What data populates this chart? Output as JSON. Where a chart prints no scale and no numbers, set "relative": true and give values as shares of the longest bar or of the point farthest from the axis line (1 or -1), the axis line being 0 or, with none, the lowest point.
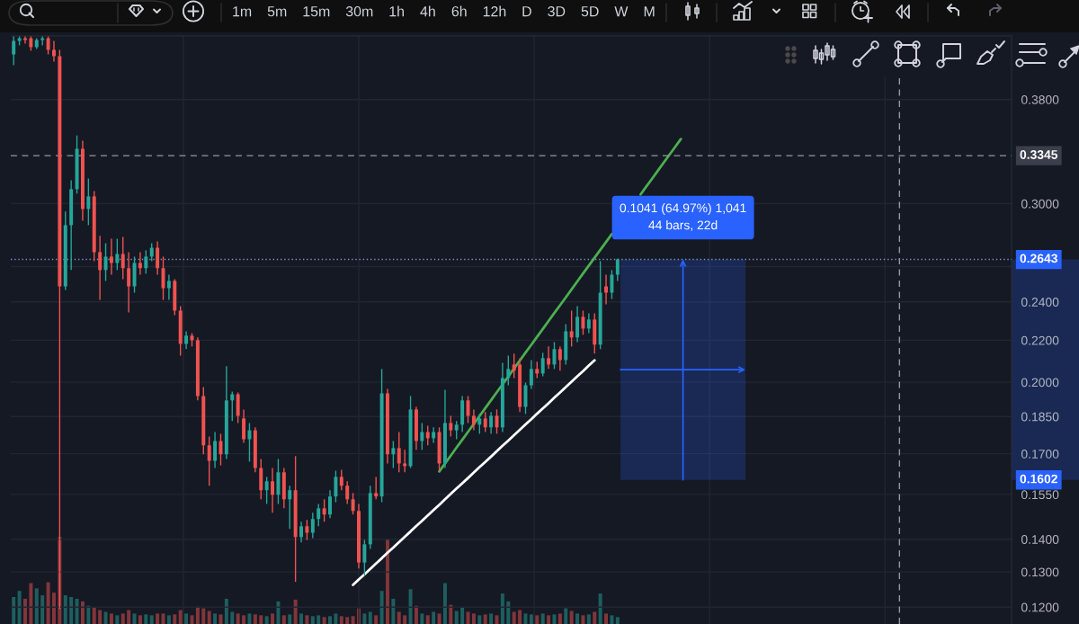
{
  "chart_data": [
    {
      "type": "candlestick",
      "categories": [
        null,
        null,
        null,
        null,
        null,
        null,
        null,
        null,
        null,
        null,
        null,
        null,
        null,
        null,
        null,
        null,
        null,
        null,
        null,
        null,
        null,
        null,
        null,
        null,
        null,
        null,
        null,
        null,
        null,
        null,
        null,
        null,
        null,
        null,
        null,
        null,
        null,
        null,
        null,
        null,
        null,
        null,
        null,
        null,
        null,
        null,
        null,
        null,
        null,
        null,
        null,
        null,
        null,
        null,
        null,
        null,
        null,
        null,
        null,
        null,
        null,
        null,
        null,
        null,
        null,
        null,
        null,
        null,
        null,
        null,
        null,
        null,
        null,
        null,
        null,
        null,
        null,
        null,
        null,
        null,
        null,
        null,
        null,
        null,
        null,
        null,
        null,
        null,
        null,
        null,
        null,
        null,
        null,
        null,
        null,
        null,
        null,
        null,
        null,
        null,
        null,
        null,
        null,
        null,
        null,
        null,
        null,
        null,
        null,
        null,
        null,
        null,
        null,
        null,
        null,
        null,
        null,
        null,
        null,
        null,
        null,
        null,
        null,
        null,
        null,
        null,
        null,
        null,
        null,
        null,
        null,
        null,
        null,
        null,
        null,
        null,
        null,
        null,
        null,
        null,
        null,
        null,
        null,
        null,
        null,
        null,
        null,
        null,
        null,
        null,
        null,
        null,
        null,
        null,
        null,
        null,
        null,
        null,
        null,
        null,
        null,
        null,
        null,
        null,
        null,
        null,
        null,
        null,
        null,
        null,
        null,
        null,
        null,
        null
      ],
      "ohlc": [
        [
          0.421,
          0.4385,
          0.4108,
          0.4341
        ],
        [
          0.4341,
          0.4385,
          0.4297,
          0.4367
        ],
        [
          0.4367,
          0.4385,
          0.4315,
          0.435
        ],
        [
          0.4367,
          0.4385,
          0.4245,
          0.428
        ],
        [
          0.428,
          0.4367,
          0.4262,
          0.435
        ],
        [
          0.435,
          0.4385,
          0.4297,
          0.4367
        ],
        [
          0.4367,
          0.4385,
          0.421,
          0.4254
        ],
        [
          0.4254,
          0.4341,
          0.4142,
          0.4193
        ],
        [
          0.4193,
          0.4254,
          0.1195,
          0.2486
        ],
        [
          0.2486,
          0.2946,
          0.2466,
          0.2857
        ],
        [
          0.2857,
          0.3163,
          0.258,
          0.31
        ],
        [
          0.31,
          0.3503,
          0.3069,
          0.3398
        ],
        [
          0.3398,
          0.3461,
          0.2886,
          0.2964
        ],
        [
          0.2964,
          0.3176,
          0.2857,
          0.305
        ],
        [
          0.305,
          0.3087,
          0.2633,
          0.2687
        ],
        [
          0.2687,
          0.2788,
          0.2411,
          0.258
        ],
        [
          0.258,
          0.2742,
          0.2517,
          0.266
        ],
        [
          0.266,
          0.277,
          0.2553,
          0.2622
        ],
        [
          0.2622,
          0.277,
          0.258,
          0.2676
        ],
        [
          0.2676,
          0.2782,
          0.2527,
          0.2591
        ],
        [
          0.2591,
          0.2687,
          0.2343,
          0.2486
        ],
        [
          0.2486,
          0.266,
          0.2451,
          0.2622
        ],
        [
          0.2622,
          0.2687,
          0.2553,
          0.2591
        ],
        [
          0.2591,
          0.2698,
          0.2559,
          0.266
        ],
        [
          0.266,
          0.2742,
          0.2633,
          0.2714
        ],
        [
          0.2714,
          0.2753,
          0.2553,
          0.2591
        ],
        [
          0.2591,
          0.266,
          0.2411,
          0.2476
        ],
        [
          0.2476,
          0.2553,
          0.2411,
          0.2517
        ],
        [
          0.2517,
          0.2527,
          0.2329,
          0.2353
        ],
        [
          0.2353,
          0.2377,
          0.2125,
          0.2182
        ],
        [
          0.2182,
          0.2245,
          0.2156,
          0.2223
        ],
        [
          0.2223,
          0.2236,
          0.2169,
          0.22
        ],
        [
          0.22,
          0.2214,
          0.1919,
          0.1938
        ],
        [
          0.1938,
          0.1978,
          0.1698,
          0.1733
        ],
        [
          0.1733,
          0.1768,
          0.1581,
          0.1673
        ],
        [
          0.1673,
          0.1786,
          0.1646,
          0.175
        ],
        [
          0.175,
          0.1779,
          0.1656,
          0.1698
        ],
        [
          0.1698,
          0.2074,
          0.168,
          0.1919
        ],
        [
          0.1919,
          0.1958,
          0.1831,
          0.1946
        ],
        [
          0.1946,
          0.1954,
          0.1823,
          0.1853
        ],
        [
          0.1842,
          0.188,
          0.1743,
          0.1757
        ],
        [
          0.1757,
          0.1823,
          0.167,
          0.1793
        ],
        [
          0.1793,
          0.1805,
          0.163,
          0.1646
        ],
        [
          0.1646,
          0.168,
          0.1533,
          0.1565
        ],
        [
          0.1565,
          0.1613,
          0.1517,
          0.1597
        ],
        [
          0.1597,
          0.1646,
          0.1487,
          0.1549
        ],
        [
          0.1549,
          0.168,
          0.1517,
          0.163
        ],
        [
          0.163,
          0.1646,
          0.1502,
          0.1533
        ],
        [
          0.1533,
          0.1581,
          0.1433,
          0.1565
        ],
        [
          0.1565,
          0.1691,
          0.1271,
          0.1407
        ],
        [
          0.1407,
          0.1457,
          0.139,
          0.1442
        ],
        [
          0.1442,
          0.1463,
          0.1398,
          0.1421
        ],
        [
          0.1421,
          0.1487,
          0.1404,
          0.1466
        ],
        [
          0.1466,
          0.1517,
          0.1442,
          0.1502
        ],
        [
          0.1502,
          0.1533,
          0.1457,
          0.1481
        ],
        [
          0.1481,
          0.1565,
          0.1469,
          0.1543
        ],
        [
          0.1543,
          0.1636,
          0.1523,
          0.1613
        ],
        [
          0.1613,
          0.1639,
          0.1565,
          0.1581
        ],
        [
          0.1581,
          0.1597,
          0.1517,
          0.1533
        ],
        [
          0.1533,
          0.1555,
          0.1481,
          0.1493
        ],
        [
          0.1493,
          0.1517,
          0.131,
          0.1328
        ],
        [
          0.1328,
          0.1398,
          0.1289,
          0.1384
        ],
        [
          0.1384,
          0.1581,
          0.137,
          0.1555
        ],
        [
          0.1555,
          0.1613,
          0.1533,
          0.1543
        ],
        [
          0.1543,
          0.2061,
          0.1523,
          0.195
        ],
        [
          0.195,
          0.197,
          0.1663,
          0.1698
        ],
        [
          0.1698,
          0.175,
          0.1646,
          0.1722
        ],
        [
          0.1722,
          0.1786,
          0.163,
          0.1663
        ],
        [
          0.1663,
          0.1715,
          0.163,
          0.1653
        ],
        [
          0.1653,
          0.1938,
          0.1646,
          0.188
        ],
        [
          0.188,
          0.1891,
          0.1715,
          0.175
        ],
        [
          0.175,
          0.1823,
          0.1715,
          0.1786
        ],
        [
          0.1786,
          0.1812,
          0.1733,
          0.1761
        ],
        [
          0.1761,
          0.1805,
          0.1743,
          0.1786
        ],
        [
          0.1786,
          0.1805,
          0.1636,
          0.1663
        ],
        [
          0.1663,
          0.1966,
          0.1646,
          0.1823
        ],
        [
          0.1823,
          0.1853,
          0.1768,
          0.1793
        ],
        [
          0.1793,
          0.1831,
          0.1757,
          0.1816
        ],
        [
          0.1816,
          0.1938,
          0.1786,
          0.1919
        ],
        [
          0.1919,
          0.1938,
          0.1823,
          0.1853
        ],
        [
          0.1853,
          0.188,
          0.1793,
          0.1816
        ],
        [
          0.1816,
          0.1861,
          0.1779,
          0.1842
        ],
        [
          0.1842,
          0.1869,
          0.1786,
          0.1805
        ],
        [
          0.1805,
          0.1869,
          0.1779,
          0.1853
        ],
        [
          0.1853,
          0.188,
          0.1779,
          0.1805
        ],
        [
          0.1805,
          0.209,
          0.1786,
          0.2019
        ],
        [
          0.2019,
          0.2125,
          0.1986,
          0.2061
        ],
        [
          0.2082,
          0.2134,
          0.2019,
          0.2053
        ],
        [
          0.2082,
          0.2112,
          0.1869,
          0.1891
        ],
        [
          0.1891,
          0.1998,
          0.1861,
          0.1986
        ],
        [
          0.1986,
          0.2103,
          0.197,
          0.2061
        ],
        [
          0.2061,
          0.2095,
          0.2019,
          0.204
        ],
        [
          0.204,
          0.2138,
          0.2027,
          0.2112
        ],
        [
          0.2112,
          0.2169,
          0.2061,
          0.2082
        ],
        [
          0.2082,
          0.2191,
          0.2061,
          0.2156
        ],
        [
          0.2156,
          0.2169,
          0.2053,
          0.2103
        ],
        [
          0.2103,
          0.2282,
          0.2082,
          0.2245
        ],
        [
          0.2245,
          0.2353,
          0.2169,
          0.2214
        ],
        [
          0.2214,
          0.2377,
          0.2191,
          0.232
        ],
        [
          0.232,
          0.2353,
          0.2227,
          0.2259
        ],
        [
          0.2259,
          0.2339,
          0.2236,
          0.2306
        ],
        [
          0.2306,
          0.2339,
          0.2134,
          0.2178
        ],
        [
          0.2178,
          0.2633,
          0.2156,
          0.2451
        ],
        [
          0.2486,
          0.2553,
          0.2387,
          0.2451
        ],
        [
          0.2451,
          0.258,
          0.2416,
          0.2553
        ],
        [
          0.2553,
          0.2649,
          0.2517,
          0.2643
        ],
        null,
        null,
        null,
        null,
        null,
        null,
        null,
        null,
        null,
        null,
        null,
        null,
        null,
        null,
        null,
        null,
        null,
        null,
        null,
        null,
        null,
        null,
        null,
        null,
        null,
        null,
        null,
        null,
        null,
        null,
        null,
        null,
        null,
        null,
        null,
        null,
        null,
        null,
        null,
        null,
        null,
        null,
        null,
        null,
        null,
        null,
        null,
        null,
        null,
        null,
        null,
        null,
        null,
        null,
        null,
        null,
        null,
        null,
        null,
        null,
        null,
        null,
        null,
        null,
        null,
        null,
        null,
        null
      ],
      "colors": [
        "#26a69a",
        "#26a69a",
        "#ef5350",
        "#ef5350",
        "#26a69a",
        "#26a69a",
        "#ef5350",
        "#ef5350",
        "#ef5350",
        "#26a69a",
        "#26a69a",
        "#26a69a",
        "#ef5350",
        "#26a69a",
        "#ef5350",
        "#ef5350",
        "#26a69a",
        "#ef5350",
        "#26a69a",
        "#ef5350",
        "#ef5350",
        "#26a69a",
        "#ef5350",
        "#26a69a",
        "#26a69a",
        "#ef5350",
        "#ef5350",
        "#26a69a",
        "#ef5350",
        "#ef5350",
        "#26a69a",
        "#ef5350",
        "#ef5350",
        "#ef5350",
        "#ef5350",
        "#26a69a",
        "#ef5350",
        "#26a69a",
        "#26a69a",
        "#ef5350",
        "#ef5350",
        "#26a69a",
        "#ef5350",
        "#ef5350",
        "#26a69a",
        "#ef5350",
        "#26a69a",
        "#ef5350",
        "#26a69a",
        "#ef5350",
        "#26a69a",
        "#ef5350",
        "#26a69a",
        "#26a69a",
        "#ef5350",
        "#26a69a",
        "#26a69a",
        "#ef5350",
        "#ef5350",
        "#ef5350",
        "#ef5350",
        "#26a69a",
        "#26a69a",
        "#ef5350",
        "#26a69a",
        "#ef5350",
        "#26a69a",
        "#ef5350",
        "#ef5350",
        "#26a69a",
        "#ef5350",
        "#26a69a",
        "#ef5350",
        "#26a69a",
        "#ef5350",
        "#26a69a",
        "#ef5350",
        "#26a69a",
        "#26a69a",
        "#ef5350",
        "#ef5350",
        "#26a69a",
        "#ef5350",
        "#26a69a",
        "#ef5350",
        "#26a69a",
        "#26a69a",
        "#ef5350",
        "#ef5350",
        "#26a69a",
        "#26a69a",
        "#ef5350",
        "#26a69a",
        "#ef5350",
        "#26a69a",
        "#ef5350",
        "#26a69a",
        "#ef5350",
        "#26a69a",
        "#ef5350",
        "#26a69a",
        "#ef5350",
        "#26a69a",
        "#ef5350",
        "#26a69a",
        "#26a69a",
        null,
        null,
        null,
        null,
        null,
        null,
        null,
        null,
        null,
        null,
        null,
        null,
        null,
        null,
        null,
        null,
        null,
        null,
        null,
        null,
        null,
        null,
        null,
        null,
        null,
        null,
        null,
        null,
        null,
        null,
        null,
        null,
        null,
        null,
        null,
        null,
        null,
        null,
        null,
        null,
        null,
        null,
        null,
        null,
        null,
        null,
        null,
        null,
        null,
        null,
        null,
        null,
        null,
        null,
        null,
        null,
        null,
        null,
        null,
        null,
        null,
        null,
        null,
        null,
        null,
        null,
        null,
        null
      ],
      "series": [
        {
          "type": "line",
          "color": "#ffffff",
          "values": [
            null,
            null,
            null,
            null,
            null,
            null,
            null,
            null,
            null,
            null,
            null,
            null,
            null,
            null,
            null,
            null,
            null,
            null,
            null,
            null,
            null,
            null,
            null,
            null,
            null,
            null,
            null,
            null,
            null,
            null,
            null,
            null,
            null,
            null,
            null,
            null,
            null,
            null,
            null,
            null,
            null,
            null,
            null,
            null,
            null,
            null,
            null,
            null,
            null,
            null,
            null,
            null,
            null,
            null,
            null,
            null,
            null,
            null,
            null,
            0.1262,
            0.1278,
            0.1293,
            0.1309,
            0.1325,
            0.1341,
            0.1358,
            0.1374,
            0.1391,
            0.1408,
            0.1425,
            0.1443,
            0.146,
            0.1478,
            0.1496,
            0.1514,
            0.1533,
            0.1552,
            0.1571,
            0.159,
            0.1609,
            0.1629,
            0.1649,
            0.1669,
            0.1689,
            0.171,
            0.1731,
            0.1752,
            0.1773,
            0.1795,
            0.1817,
            0.1839,
            0.1862,
            0.1884,
            0.1907,
            0.1931,
            0.1954,
            0.1978,
            0.2002,
            0.2027,
            0.2051,
            0.2077,
            0.2102,
            null,
            null,
            null,
            null,
            null,
            null,
            null,
            null,
            null,
            null,
            null,
            null,
            null,
            null,
            null,
            null,
            null,
            null,
            null,
            null,
            null,
            null,
            null,
            null,
            null,
            null,
            null,
            null,
            null,
            null,
            null,
            null,
            null,
            null,
            null,
            null,
            null,
            null,
            null,
            null,
            null,
            null,
            null,
            null,
            null,
            null,
            null,
            null,
            null,
            null,
            null,
            null,
            null,
            null,
            null,
            null,
            null,
            null,
            null,
            null,
            null,
            null,
            null,
            null,
            null,
            null,
            null,
            null,
            null,
            null,
            null,
            null
          ]
        },
        {
          "type": "line",
          "color": "#4caf50",
          "values": [
            null,
            null,
            null,
            null,
            null,
            null,
            null,
            null,
            null,
            null,
            null,
            null,
            null,
            null,
            null,
            null,
            null,
            null,
            null,
            null,
            null,
            null,
            null,
            null,
            null,
            null,
            null,
            null,
            null,
            null,
            null,
            null,
            null,
            null,
            null,
            null,
            null,
            null,
            null,
            null,
            null,
            null,
            null,
            null,
            null,
            null,
            null,
            null,
            null,
            null,
            null,
            null,
            null,
            null,
            null,
            null,
            null,
            null,
            null,
            null,
            null,
            null,
            null,
            null,
            null,
            null,
            null,
            null,
            null,
            null,
            null,
            null,
            null,
            null,
            0.1633,
            0.1663,
            0.1693,
            0.1724,
            0.1755,
            0.1787,
            0.1819,
            0.1852,
            0.1886,
            0.192,
            0.1955,
            0.199,
            0.2026,
            0.2063,
            0.2101,
            0.2139,
            0.2177,
            0.2217,
            0.2257,
            0.2298,
            0.234,
            0.2382,
            0.2425,
            0.2469,
            0.2514,
            0.256,
            0.2606,
            0.2653,
            0.2701,
            0.275,
            0.28,
            null,
            null,
            null,
            null,
            0.3063,
            0.3119,
            0.3175,
            0.3233,
            0.3292,
            0.3351,
            0.3412,
            0.3474,
            null,
            null,
            null,
            null,
            null,
            null,
            null,
            null,
            null,
            null,
            null,
            null,
            null,
            null,
            null,
            null,
            null,
            null,
            null,
            null,
            null,
            null,
            null,
            null,
            null,
            null,
            null,
            null,
            null,
            null,
            null,
            null,
            null,
            null,
            null,
            null,
            null,
            null,
            null,
            null,
            null,
            null,
            null,
            null,
            null,
            null,
            null,
            null,
            null,
            null,
            null,
            null,
            null,
            null,
            null,
            null,
            null
          ]
        }
      ],
      "ylim": [
        0.1155,
        0.439
      ],
      "yticks": [
        {
          "value": 0.38,
          "label": "0.3800"
        },
        {
          "value": 0.3,
          "label": "0.3000"
        },
        {
          "value": 0.2643,
          "label": "0.2643"
        },
        {
          "value": 0.26,
          "label": null
        },
        {
          "value": 0.24,
          "label": "0.2400"
        },
        {
          "value": 0.22,
          "label": "0.2200"
        },
        {
          "value": 0.2,
          "label": "0.2000"
        },
        {
          "value": 0.185,
          "label": "0.1850"
        },
        {
          "value": 0.17,
          "label": "0.1700"
        },
        {
          "value": 0.1602,
          "label": "0.1602"
        },
        {
          "value": 0.155,
          "label": "0.1550"
        },
        {
          "value": 0.14,
          "label": "0.1400"
        },
        {
          "value": 0.13,
          "label": "0.1300"
        },
        {
          "value": 0.12,
          "label": "0.1200"
        }
      ],
      "log": "y",
      "grid": true,
      "tick_labels": "y",
      "ref_lines": [
        {
          "axis": "y",
          "value": 0.3345,
          "label": "0.3345",
          "color": "#9598a1",
          "line_style": "dashed"
        },
        {
          "axis": "y",
          "value": 0.2643,
          "color": "#7f8fc8",
          "line_style": "dotted"
        }
      ],
      "bands": [
        {
          "axis": "y",
          "from": 0.1602,
          "to": 0.2643,
          "label": "0.1041 (64.97%) 1,041\n44 bars, 22d",
          "color": "#2962ff"
        }
      ],
      "annotations": [
        "1m",
        "5m",
        "15m",
        "30m",
        "1h",
        "4h",
        "6h",
        "12h",
        "D",
        "3D",
        "5D",
        "W",
        "M"
      ]
    },
    {
      "type": "bar",
      "relative": true,
      "tick_labels": false,
      "categories": [
        null,
        null,
        null,
        null,
        null,
        null,
        null,
        null,
        null,
        null,
        null,
        null,
        null,
        null,
        null,
        null,
        null,
        null,
        null,
        null,
        null,
        null,
        null,
        null,
        null,
        null,
        null,
        null,
        null,
        null,
        null,
        null,
        null,
        null,
        null,
        null,
        null,
        null,
        null,
        null,
        null,
        null,
        null,
        null,
        null,
        null,
        null,
        null,
        null,
        null,
        null,
        null,
        null,
        null,
        null,
        null,
        null,
        null,
        null,
        null,
        null,
        null,
        null,
        null,
        null,
        null,
        null,
        null,
        null,
        null,
        null,
        null,
        null,
        null,
        null,
        null,
        null,
        null,
        null,
        null,
        null,
        null,
        null,
        null,
        null,
        null,
        null,
        null,
        null,
        null,
        null,
        null,
        null,
        null,
        null,
        null,
        null,
        null,
        null,
        null,
        null,
        null,
        null,
        null,
        null,
        null,
        null,
        null,
        null,
        null,
        null,
        null,
        null,
        null,
        null,
        null,
        null,
        null,
        null,
        null,
        null,
        null,
        null,
        null,
        null,
        null,
        null,
        null,
        null,
        null,
        null,
        null,
        null,
        null,
        null,
        null,
        null,
        null,
        null,
        null,
        null,
        null,
        null,
        null,
        null,
        null,
        null,
        null,
        null,
        null,
        null,
        null,
        null,
        null,
        null,
        null,
        null,
        null,
        null,
        null,
        null,
        null,
        null,
        null,
        null,
        null,
        null,
        null,
        null,
        null,
        null,
        null,
        null,
        null
      ],
      "values": [
        0.31,
        0.38,
        0.29,
        0.47,
        0.41,
        0.33,
        0.48,
        0.36,
        1,
        0.33,
        0.31,
        0.29,
        0.26,
        0.21,
        0.19,
        0.16,
        0.14,
        0.12,
        0.1,
        0.12,
        0.16,
        0.12,
        0.1,
        0.11,
        0.1,
        0.12,
        0.12,
        0.1,
        0.11,
        0.16,
        0.12,
        0.1,
        0.2,
        0.18,
        0.15,
        0.12,
        0.11,
        0.29,
        0.14,
        0.12,
        0.1,
        0.12,
        0.11,
        0.1,
        0.09,
        0.12,
        0.26,
        0.1,
        0.11,
        0.28,
        0.12,
        0.1,
        0.09,
        0.1,
        0.08,
        0.09,
        0.12,
        0.09,
        0.08,
        0.09,
        0.18,
        0.12,
        0.14,
        0.1,
        0.38,
        0.98,
        0.29,
        0.14,
        0.1,
        0.4,
        0.21,
        0.12,
        0.1,
        0.14,
        0.12,
        0.47,
        0.22,
        0.15,
        0.19,
        0.14,
        0.12,
        0.1,
        0.11,
        0.12,
        0.1,
        0.35,
        0.26,
        0.14,
        0.16,
        0.12,
        0.11,
        0.1,
        0.12,
        0.1,
        0.11,
        0.12,
        0.18,
        0.15,
        0.12,
        0.1,
        0.11,
        0.14,
        0.35,
        0.12,
        0.1,
        0.08,
        null,
        null,
        null,
        null,
        null,
        null,
        null,
        null,
        null,
        null,
        null,
        null,
        null,
        null,
        null,
        null,
        null,
        null,
        null,
        null,
        null,
        null,
        null,
        null,
        null,
        null,
        null,
        null,
        null,
        null,
        null,
        null,
        null,
        null,
        null,
        null,
        null,
        null,
        null,
        null,
        null,
        null,
        null,
        null,
        null,
        null,
        null,
        null,
        null,
        null,
        null,
        null,
        null,
        null,
        null,
        null,
        null,
        null,
        null,
        null,
        null,
        null,
        null,
        null,
        null,
        null,
        null,
        null
      ],
      "colors": [
        "#1d5f5f",
        "#1d5f5f",
        "#82363a",
        "#82363a",
        "#1d5f5f",
        "#1d5f5f",
        "#82363a",
        "#82363a",
        "#82363a",
        "#1d5f5f",
        "#1d5f5f",
        "#1d5f5f",
        "#82363a",
        "#1d5f5f",
        "#82363a",
        "#82363a",
        "#1d5f5f",
        "#82363a",
        "#1d5f5f",
        "#82363a",
        "#82363a",
        "#1d5f5f",
        "#82363a",
        "#1d5f5f",
        "#1d5f5f",
        "#82363a",
        "#82363a",
        "#1d5f5f",
        "#82363a",
        "#82363a",
        "#1d5f5f",
        "#82363a",
        "#82363a",
        "#82363a",
        "#82363a",
        "#1d5f5f",
        "#82363a",
        "#1d5f5f",
        "#1d5f5f",
        "#82363a",
        "#82363a",
        "#1d5f5f",
        "#82363a",
        "#82363a",
        "#1d5f5f",
        "#82363a",
        "#1d5f5f",
        "#82363a",
        "#1d5f5f",
        "#82363a",
        "#1d5f5f",
        "#82363a",
        "#1d5f5f",
        "#1d5f5f",
        "#82363a",
        "#1d5f5f",
        "#1d5f5f",
        "#82363a",
        "#82363a",
        "#82363a",
        "#82363a",
        "#1d5f5f",
        "#1d5f5f",
        "#82363a",
        "#1d5f5f",
        "#82363a",
        "#1d5f5f",
        "#82363a",
        "#82363a",
        "#1d5f5f",
        "#82363a",
        "#1d5f5f",
        "#82363a",
        "#1d5f5f",
        "#82363a",
        "#1d5f5f",
        "#82363a",
        "#1d5f5f",
        "#1d5f5f",
        "#82363a",
        "#82363a",
        "#1d5f5f",
        "#82363a",
        "#1d5f5f",
        "#82363a",
        "#1d5f5f",
        "#1d5f5f",
        "#82363a",
        "#82363a",
        "#1d5f5f",
        "#1d5f5f",
        "#82363a",
        "#1d5f5f",
        "#82363a",
        "#1d5f5f",
        "#82363a",
        "#1d5f5f",
        "#82363a",
        "#1d5f5f",
        "#82363a",
        "#1d5f5f",
        "#82363a",
        "#1d5f5f",
        "#82363a",
        "#1d5f5f",
        "#1d5f5f",
        null,
        null,
        null,
        null,
        null,
        null,
        null,
        null,
        null,
        null,
        null,
        null,
        null,
        null,
        null,
        null,
        null,
        null,
        null,
        null,
        null,
        null,
        null,
        null,
        null,
        null,
        null,
        null,
        null,
        null,
        null,
        null,
        null,
        null,
        null,
        null,
        null,
        null,
        null,
        null,
        null,
        null,
        null,
        null,
        null,
        null,
        null,
        null,
        null,
        null,
        null,
        null,
        null,
        null,
        null,
        null,
        null,
        null,
        null,
        null,
        null,
        null,
        null,
        null,
        null,
        null,
        null,
        null
      ]
    }
  ]
}
